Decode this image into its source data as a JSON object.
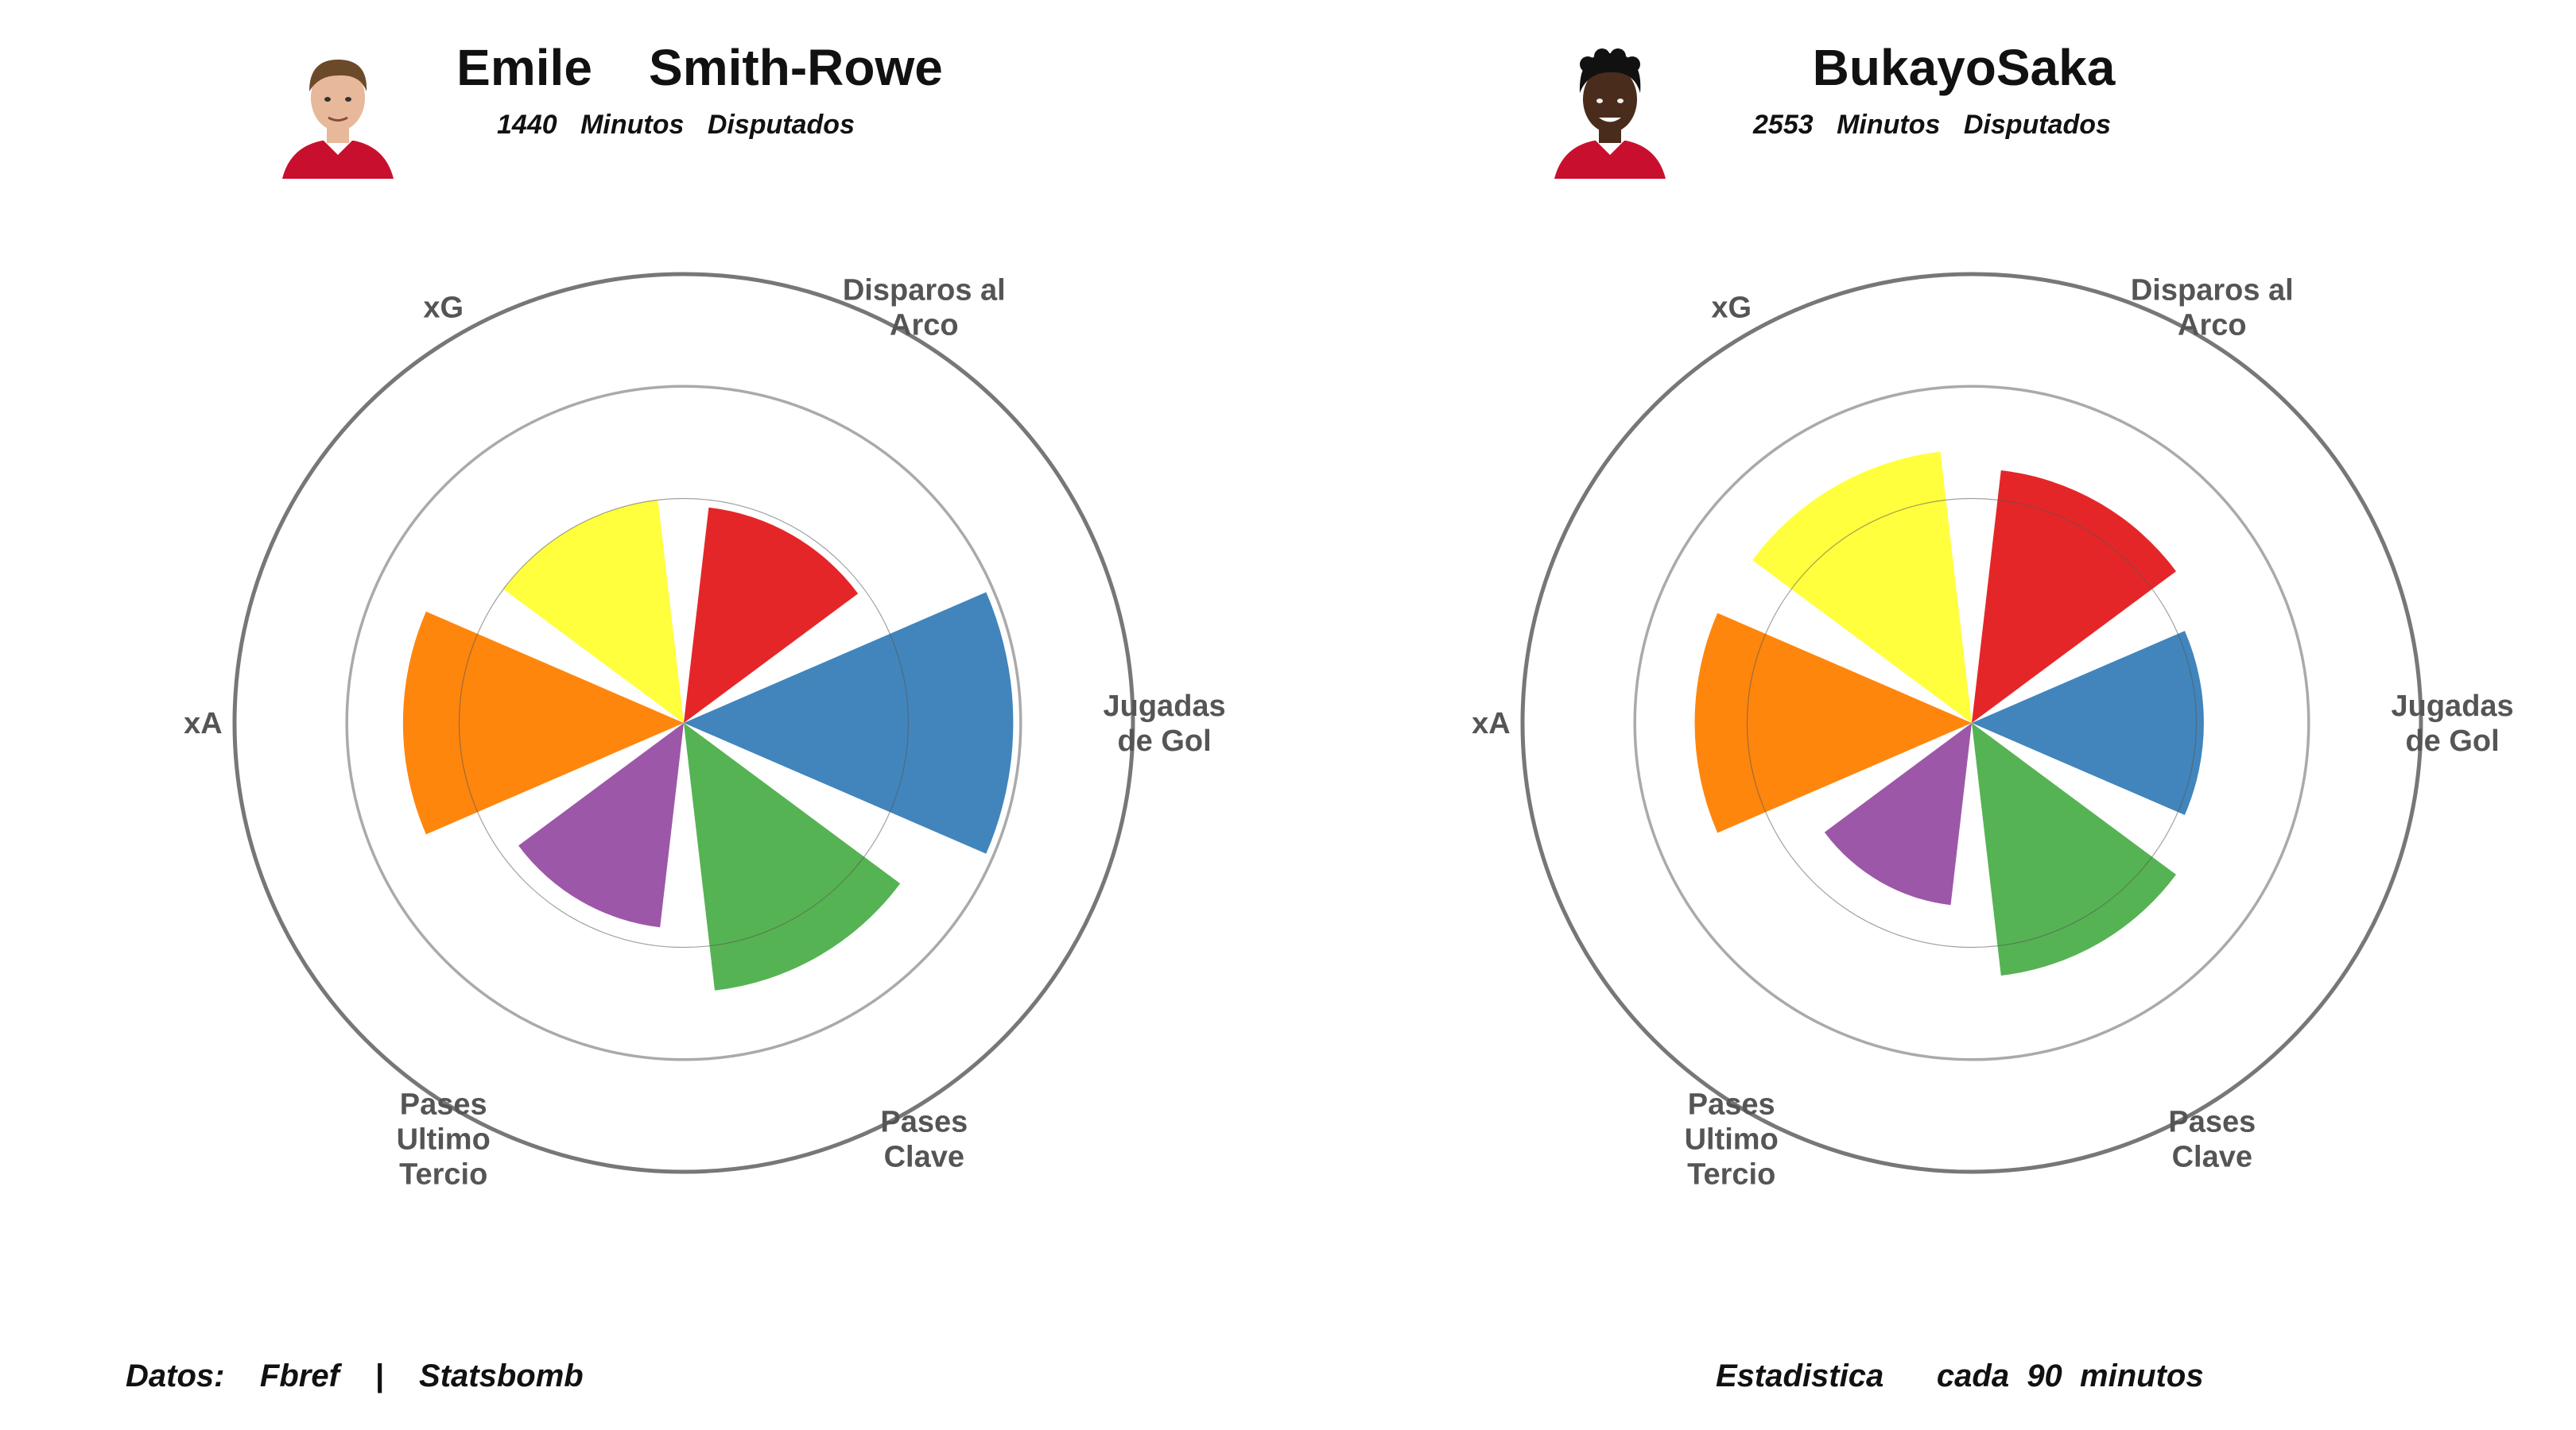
{
  "footer": {
    "source_label": "Datos:",
    "source_1": "Fbref",
    "separator": "|",
    "source_2": "Statsbomb",
    "note_1": "Estadistica",
    "note_2": "cada",
    "note_3": "90",
    "note_4": "minutos"
  },
  "players": [
    {
      "first_name": "Emile",
      "last_name": "Smith-Rowe",
      "minutes_value": "1440",
      "minutes_word": "Minutos",
      "played_word": "Disputados",
      "avatar_icon": "player-photo-icon",
      "skin": "#e8b89a",
      "hair": "#6b4a2a"
    },
    {
      "first_name": "Bukayo",
      "last_name": "Saka",
      "minutes_value": "2553",
      "minutes_word": "Minutos",
      "played_word": "Disputados",
      "avatar_icon": "player-photo-icon",
      "skin": "#4a2c1c",
      "hair": "#111111"
    }
  ],
  "chart_data": [
    {
      "type": "polar-bar",
      "categories": [
        {
          "label": [
            "Disparos al",
            "Arco"
          ],
          "color": "#e41a1c"
        },
        {
          "label": [
            "Jugadas",
            "de Gol"
          ],
          "color": "#377eb8"
        },
        {
          "label": [
            "Pases",
            "Clave"
          ],
          "color": "#4daf4a"
        },
        {
          "label": [
            "Pases",
            "Ultimo",
            "Tercio"
          ],
          "color": "#984ea3"
        },
        {
          "label": [
            "xA"
          ],
          "color": "#ff7f00"
        },
        {
          "label": [
            "xG"
          ],
          "color": "#ffff33"
        }
      ],
      "values": [
        0.58,
        0.88,
        0.72,
        0.55,
        0.75,
        0.6
      ],
      "rmax": 1.2,
      "gridlines": [
        0.6,
        0.9,
        1.2
      ]
    },
    {
      "type": "polar-bar",
      "categories": [
        {
          "label": [
            "Disparos al",
            "Arco"
          ],
          "color": "#e41a1c"
        },
        {
          "label": [
            "Jugadas",
            "de Gol"
          ],
          "color": "#377eb8"
        },
        {
          "label": [
            "Pases",
            "Clave"
          ],
          "color": "#4daf4a"
        },
        {
          "label": [
            "Pases",
            "Ultimo",
            "Tercio"
          ],
          "color": "#984ea3"
        },
        {
          "label": [
            "xA"
          ],
          "color": "#ff7f00"
        },
        {
          "label": [
            "xG"
          ],
          "color": "#ffff33"
        }
      ],
      "values": [
        0.68,
        0.62,
        0.68,
        0.49,
        0.74,
        0.73
      ],
      "rmax": 1.2,
      "gridlines": [
        0.6,
        0.9,
        1.2
      ]
    }
  ]
}
